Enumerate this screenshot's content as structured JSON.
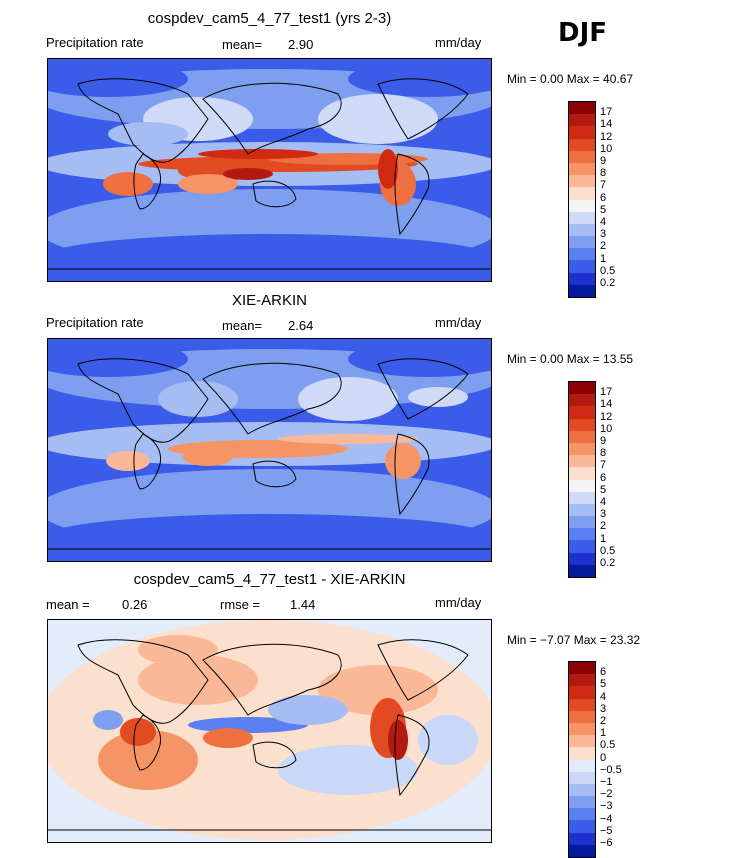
{
  "season": "DJF",
  "panels": [
    {
      "id": "model",
      "title": "cospdev_cam5_4_77_test1 (yrs 2-3)",
      "variable": "Precipitation rate",
      "stat1_label": "mean=",
      "stat1_value": "2.90",
      "stat2_label": "",
      "stat2_value": "",
      "units": "mm/day",
      "minmax": "Min =    0.00 Max =   40.67",
      "palette": "precip"
    },
    {
      "id": "obs",
      "title": "XIE-ARKIN",
      "variable": "Precipitation rate",
      "stat1_label": "mean=",
      "stat1_value": "2.64",
      "stat2_label": "",
      "stat2_value": "",
      "units": "mm/day",
      "minmax": "Min =    0.00 Max =   13.55",
      "palette": "precip"
    },
    {
      "id": "diff",
      "title": "cospdev_cam5_4_77_test1 - XIE-ARKIN",
      "variable": "",
      "stat1_label": "mean =",
      "stat1_value": "0.26",
      "stat2_label": "rmse =",
      "stat2_value": "1.44",
      "units": "mm/day",
      "minmax": "Min =  −7.07 Max =   23.32",
      "palette": "diff"
    }
  ],
  "colorbars": {
    "precip": {
      "levels": [
        "17",
        "14",
        "12",
        "10",
        "9",
        "8",
        "7",
        "6",
        "5",
        "4",
        "3",
        "2",
        "1",
        "0.5",
        "0.2"
      ],
      "colors": [
        "#8b0000",
        "#b21a10",
        "#d02b12",
        "#e24a22",
        "#ee7040",
        "#f59566",
        "#fbb896",
        "#fce0ce",
        "#f4f4f4",
        "#cfdaf7",
        "#a6bdf3",
        "#7e9ff0",
        "#5a7ff0",
        "#3a5ce8",
        "#1c32cf",
        "#061a9f"
      ]
    },
    "diff": {
      "levels": [
        "6",
        "5",
        "4",
        "3",
        "2",
        "1",
        "0.5",
        "0",
        "−0.5",
        "−1",
        "−2",
        "−3",
        "−4",
        "−5",
        "−6"
      ],
      "colors": [
        "#8b0000",
        "#b21a10",
        "#d02b12",
        "#e24a22",
        "#ee7040",
        "#f59566",
        "#fbb896",
        "#fce0ce",
        "#e2ecfa",
        "#cad8f7",
        "#a6bdf3",
        "#7e9ff0",
        "#5a7ff0",
        "#3a5ce8",
        "#1c32cf",
        "#061a9f"
      ]
    }
  }
}
